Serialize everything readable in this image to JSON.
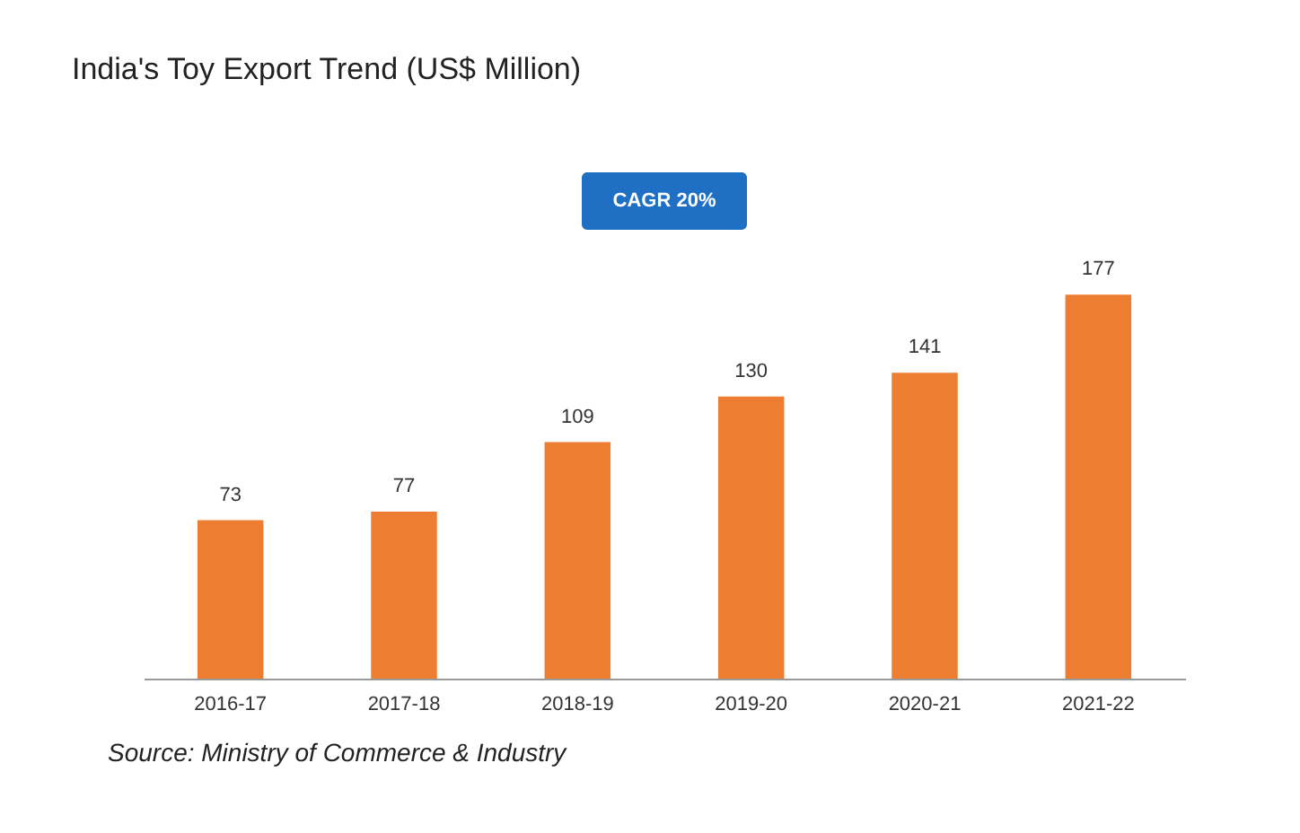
{
  "chart_data": {
    "type": "bar",
    "title": "India's Toy Export Trend (US$ Million)",
    "categories": [
      "2016-17",
      "2017-18",
      "2018-19",
      "2019-20",
      "2020-21",
      "2021-22"
    ],
    "values": [
      73,
      77,
      109,
      130,
      141,
      177
    ],
    "color": "#ed7d31",
    "data_labels": true,
    "grid": false,
    "tick_labels": "x",
    "annotations": [
      "CAGR 20%",
      "Source: Ministry of Commerce & Industry"
    ]
  }
}
